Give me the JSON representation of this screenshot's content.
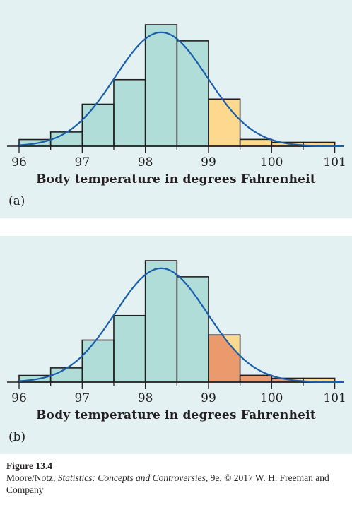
{
  "chart_data": [
    {
      "type": "bar",
      "panel_label": "(a)",
      "xlabel": "Body temperature in degrees Fahrenheit",
      "xlim": [
        96,
        101.15
      ],
      "ylim": [
        0,
        1
      ],
      "x_ticks": [
        96,
        97,
        98,
        99,
        100,
        101
      ],
      "bin_edges": [
        96.0,
        96.5,
        97.0,
        97.5,
        98.0,
        98.5,
        99.0,
        99.5,
        100.0,
        100.5,
        101.0
      ],
      "values": [
        0.055,
        0.117,
        0.346,
        0.548,
        1.0,
        0.867,
        0.388,
        0.056,
        0.032,
        0.032
      ],
      "bar_colors": [
        "#b1ddd9",
        "#b1ddd9",
        "#b1ddd9",
        "#b1ddd9",
        "#b1ddd9",
        "#b1ddd9",
        "#fdd98f",
        "#fdd98f",
        "#fdd98f",
        "#fdd98f"
      ],
      "shaded_region": null,
      "curve": {
        "type": "normal",
        "mean": 98.25,
        "sd": 0.73,
        "peak": 0.937,
        "color": "#1a5fab"
      }
    },
    {
      "type": "bar",
      "panel_label": "(b)",
      "xlabel": "Body temperature in degrees Fahrenheit",
      "xlim": [
        96,
        101.15
      ],
      "ylim": [
        0,
        1
      ],
      "x_ticks": [
        96,
        97,
        98,
        99,
        100,
        101
      ],
      "bin_edges": [
        96.0,
        96.5,
        97.0,
        97.5,
        98.0,
        98.5,
        99.0,
        99.5,
        100.0,
        100.5,
        101.0
      ],
      "values": [
        0.055,
        0.117,
        0.346,
        0.548,
        1.0,
        0.867,
        0.388,
        0.056,
        0.032,
        0.032
      ],
      "bar_colors": [
        "#b1ddd9",
        "#b1ddd9",
        "#b1ddd9",
        "#b1ddd9",
        "#b1ddd9",
        "#b1ddd9",
        "#fdd98f",
        "#fdd98f",
        "#fdd98f",
        "#fdd98f"
      ],
      "shaded_region": {
        "from": 99.0,
        "to": 101.15,
        "color": "#ea9a6c"
      },
      "curve": {
        "type": "normal",
        "mean": 98.25,
        "sd": 0.73,
        "peak": 0.937,
        "color": "#1a5fab"
      }
    }
  ],
  "caption": {
    "figure": "Figure 13.4",
    "authors": "Moore/Notz, ",
    "book": "Statistics: Concepts and Controversies",
    "details": ", 9e, © 2017 W. H. Freeman and Company"
  }
}
